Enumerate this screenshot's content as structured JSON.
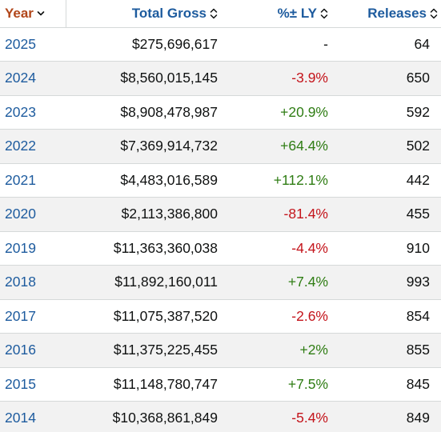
{
  "colors": {
    "header_link": "#1d5b9e",
    "active_sort_header": "#b1461a",
    "negative": "#c4141b",
    "positive": "#2f7d14",
    "stripe": "#f2f2f2"
  },
  "header": {
    "year": {
      "label": "Year",
      "icon": "chevron-down-icon"
    },
    "gross": {
      "label": "Total Gross",
      "icon": "sort-up-down-icon"
    },
    "pct": {
      "label": "%± LY",
      "icon": "sort-up-down-icon"
    },
    "releases": {
      "label": "Releases",
      "icon": "sort-up-down-icon"
    }
  },
  "rows": [
    {
      "year": "2025",
      "gross": "$275,696,617",
      "pct": "-",
      "pct_trend": "neutral",
      "releases": "64"
    },
    {
      "year": "2024",
      "gross": "$8,560,015,145",
      "pct": "-3.9%",
      "pct_trend": "neg",
      "releases": "650"
    },
    {
      "year": "2023",
      "gross": "$8,908,478,987",
      "pct": "+20.9%",
      "pct_trend": "pos",
      "releases": "592"
    },
    {
      "year": "2022",
      "gross": "$7,369,914,732",
      "pct": "+64.4%",
      "pct_trend": "pos",
      "releases": "502"
    },
    {
      "year": "2021",
      "gross": "$4,483,016,589",
      "pct": "+112.1%",
      "pct_trend": "pos",
      "releases": "442"
    },
    {
      "year": "2020",
      "gross": "$2,113,386,800",
      "pct": "-81.4%",
      "pct_trend": "neg",
      "releases": "455"
    },
    {
      "year": "2019",
      "gross": "$11,363,360,038",
      "pct": "-4.4%",
      "pct_trend": "neg",
      "releases": "910"
    },
    {
      "year": "2018",
      "gross": "$11,892,160,011",
      "pct": "+7.4%",
      "pct_trend": "pos",
      "releases": "993"
    },
    {
      "year": "2017",
      "gross": "$11,075,387,520",
      "pct": "-2.6%",
      "pct_trend": "neg",
      "releases": "854"
    },
    {
      "year": "2016",
      "gross": "$11,375,225,455",
      "pct": "+2%",
      "pct_trend": "pos",
      "releases": "855"
    },
    {
      "year": "2015",
      "gross": "$11,148,780,747",
      "pct": "+7.5%",
      "pct_trend": "pos",
      "releases": "845"
    },
    {
      "year": "2014",
      "gross": "$10,368,861,849",
      "pct": "-5.4%",
      "pct_trend": "neg",
      "releases": "849"
    }
  ]
}
